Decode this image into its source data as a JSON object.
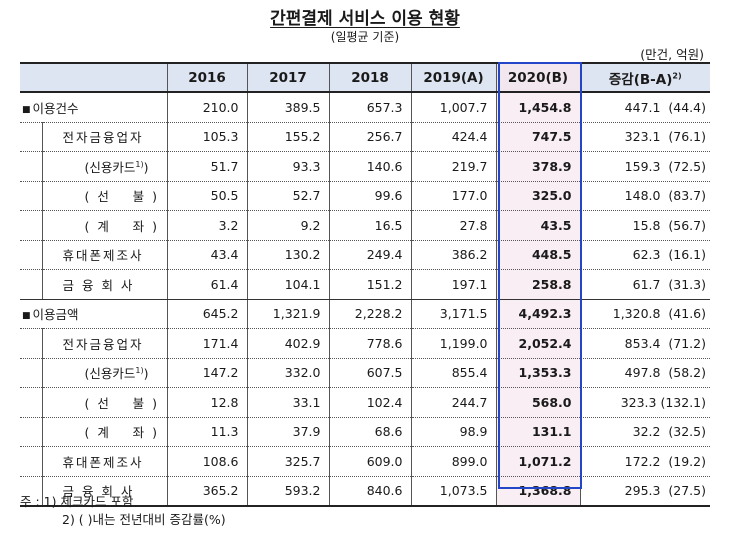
{
  "title": "간편결제 서비스 이용 현황",
  "subtitle": "(일평균 기준)",
  "unit": "(만건, 억원)",
  "headers": [
    "2016",
    "2017",
    "2018",
    "2019(A)",
    "2020(B)",
    "증감(B-A)"
  ],
  "header_sup": "2)",
  "rows": [
    {
      "label": "이용건수",
      "level": 0,
      "values": [
        "210.0",
        "389.5",
        "657.3",
        "1,007.7",
        "1,454.8",
        "447.1  (44.4)"
      ]
    },
    {
      "label": "전자금융업자",
      "level": 1,
      "values": [
        "105.3",
        "155.2",
        "256.7",
        "424.4",
        "747.5",
        "323.1  (76.1)"
      ]
    },
    {
      "label": "(신용카드",
      "sup": "1)",
      "label_end": ")",
      "level": 2,
      "values": [
        "51.7",
        "93.3",
        "140.6",
        "219.7",
        "378.9",
        "159.3  (72.5)"
      ]
    },
    {
      "label": "(  선      불  )",
      "level": 2,
      "values": [
        "50.5",
        "52.7",
        "99.6",
        "177.0",
        "325.0",
        "148.0  (83.7)"
      ]
    },
    {
      "label": "(  계      좌  )",
      "level": 2,
      "values": [
        "3.2",
        "9.2",
        "16.5",
        "27.8",
        "43.5",
        "15.8  (56.7)"
      ]
    },
    {
      "label": "휴대폰제조사",
      "level": 1,
      "values": [
        "43.4",
        "130.2",
        "249.4",
        "386.2",
        "448.5",
        "62.3  (16.1)"
      ]
    },
    {
      "label": "금 융 회 사",
      "level": 1,
      "values": [
        "61.4",
        "104.1",
        "151.2",
        "197.1",
        "258.8",
        "61.7  (31.3)"
      ]
    },
    {
      "label": "이용금액",
      "level": 0,
      "values": [
        "645.2",
        "1,321.9",
        "2,228.2",
        "3,171.5",
        "4,492.3",
        "1,320.8  (41.6)"
      ]
    },
    {
      "label": "전자금융업자",
      "level": 1,
      "values": [
        "171.4",
        "402.9",
        "778.6",
        "1,199.0",
        "2,052.4",
        "853.4  (71.2)"
      ]
    },
    {
      "label": "(신용카드",
      "sup": "1)",
      "label_end": ")",
      "level": 2,
      "values": [
        "147.2",
        "332.0",
        "607.5",
        "855.4",
        "1,353.3",
        "497.8  (58.2)"
      ]
    },
    {
      "label": "(  선      불  )",
      "level": 2,
      "values": [
        "12.8",
        "33.1",
        "102.4",
        "244.7",
        "568.0",
        "323.3 (132.1)"
      ]
    },
    {
      "label": "(  계      좌  )",
      "level": 2,
      "values": [
        "11.3",
        "37.9",
        "68.6",
        "98.9",
        "131.1",
        "32.2  (32.5)"
      ]
    },
    {
      "label": "휴대폰제조사",
      "level": 1,
      "values": [
        "108.6",
        "325.7",
        "609.0",
        "899.0",
        "1,071.2",
        "172.2  (19.2)"
      ]
    },
    {
      "label": "금 융 회 사",
      "level": 1,
      "values": [
        "365.2",
        "593.2",
        "840.6",
        "1,073.5",
        "1,368.8",
        "295.3  (27.5)"
      ]
    }
  ],
  "notes": [
    "주 : 1) 체크카드 포함",
    "2) (  )내는 전년대비 증감률(%)"
  ]
}
